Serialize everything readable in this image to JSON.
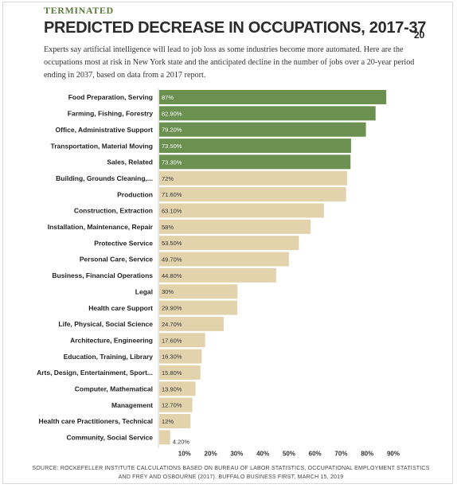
{
  "header": {
    "kicker": "TERMINATED",
    "title": "PREDICTED DECREASE IN OCCUPATIONS, 2017-37",
    "page_number": "20",
    "intro": "Experts say artificial intelligence will lead to job loss as some industries become more automated. Here are the occupations most at risk in New York state and the anticipated decline in the number of jobs over a 20-year period ending in 2037, based on data from a 2017 report."
  },
  "footer": {
    "source": "SOURCE: ROCKEFELLER INSTITUTE CALCULATIONS BASED ON BUREAU OF LABOR STATISTICS, OCCUPATIONAL EMPLOYMENT STATISTICS AND FREY AND OSBOURNE (2017). BUFFALO BUSINESS FIRST, MARCH 15, 2019"
  },
  "chart_data": {
    "type": "bar",
    "orientation": "horizontal",
    "categories": [
      "Food Preparation, Serving",
      "Farming, Fishing, Forestry",
      "Office, Administrative Support",
      "Transportation, Material Moving",
      "Sales, Related",
      "Building, Grounds Cleaning,...",
      "Production",
      "Construction, Extraction",
      "Installation, Maintenance, Repair",
      "Protective Service",
      "Personal Care, Service",
      "Business, Financial Operations",
      "Legal",
      "Health care Support",
      "Life, Physical, Social Science",
      "Architecture, Engineering",
      "Education, Training, Library",
      "Arts, Design, Entertainment, Sport...",
      "Computer, Mathematical",
      "Management",
      "Health care Practitioners, Technical",
      "Community, Social Service"
    ],
    "values": [
      87,
      82.9,
      79.2,
      73.5,
      73.3,
      72,
      71.6,
      63.1,
      58,
      53.5,
      49.7,
      44.8,
      30,
      29.9,
      24.7,
      17.6,
      16.3,
      15.8,
      13.9,
      12.7,
      12,
      4.2
    ],
    "value_labels": [
      "87%",
      "82.90%",
      "79.20%",
      "73.50%",
      "73.30%",
      "72%",
      "71.60%",
      "63.10%",
      "58%",
      "53.50%",
      "49.70%",
      "44.80%",
      "30%",
      "29.90%",
      "24.70%",
      "17.60%",
      "16.30%",
      "15.80%",
      "13.90%",
      "12.70%",
      "12%",
      "4.20%"
    ],
    "highlight_count": 5,
    "xticks": [
      "10%",
      "20%",
      "30%",
      "40%",
      "50%",
      "60%",
      "70%",
      "80%",
      "90%"
    ],
    "xlim": [
      0,
      92
    ],
    "grid": false,
    "colors": {
      "highlight": "#6b9050",
      "base": "#e2d3ad",
      "label_on_dark": "#ffffff",
      "label_on_light": "#333333"
    }
  }
}
